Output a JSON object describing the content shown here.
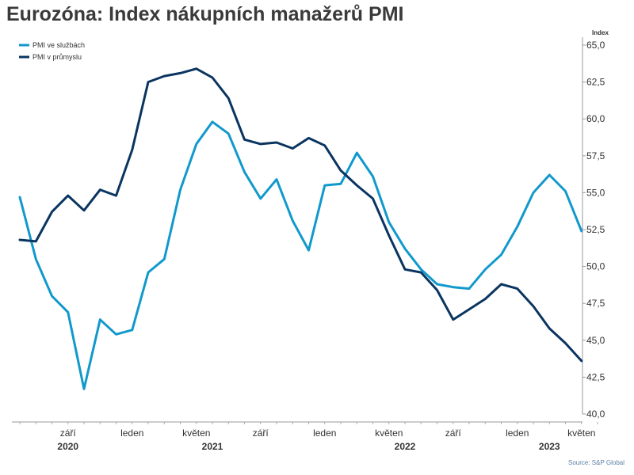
{
  "title": "Eurozóna: Index nákupních manažerů PMI",
  "source": "Source: S&P Global",
  "chart_data": {
    "type": "line",
    "title": "Eurozóna: Index nákupních manažerů PMI",
    "ylabel": "Index",
    "ylim": [
      40,
      65
    ],
    "yticks": [
      "65,0",
      "62,5",
      "60,0",
      "57,5",
      "55,0",
      "52,5",
      "50,0",
      "47,5",
      "45,0",
      "42,5",
      "40,0"
    ],
    "ytick_values": [
      65,
      62.5,
      60,
      57.5,
      55,
      52.5,
      50,
      47.5,
      45,
      42.5,
      40
    ],
    "x": [
      "2020-06",
      "2020-07",
      "2020-08",
      "2020-09",
      "2020-10",
      "2020-11",
      "2020-12",
      "2021-01",
      "2021-02",
      "2021-03",
      "2021-04",
      "2021-05",
      "2021-06",
      "2021-07",
      "2021-08",
      "2021-09",
      "2021-10",
      "2021-11",
      "2021-12",
      "2022-01",
      "2022-02",
      "2022-03",
      "2022-04",
      "2022-05",
      "2022-06",
      "2022-07",
      "2022-08",
      "2022-09",
      "2022-10",
      "2022-11",
      "2022-12",
      "2023-01",
      "2023-02",
      "2023-03",
      "2023-04",
      "2023-05",
      "2023-06"
    ],
    "x_tick_labels": [
      {
        "month": "2020-09",
        "label": "září"
      },
      {
        "month": "2021-01",
        "label": "leden"
      },
      {
        "month": "2021-05",
        "label": "květen"
      },
      {
        "month": "2021-09",
        "label": "září"
      },
      {
        "month": "2022-01",
        "label": "leden"
      },
      {
        "month": "2022-05",
        "label": "květen"
      },
      {
        "month": "2022-09",
        "label": "září"
      },
      {
        "month": "2023-01",
        "label": "leden"
      },
      {
        "month": "2023-05",
        "label": "květen"
      }
    ],
    "year_labels": [
      {
        "month": "2020-09",
        "label": "2020"
      },
      {
        "month": "2021-06",
        "label": "2021"
      },
      {
        "month": "2022-06",
        "label": "2022"
      },
      {
        "month": "2023-03",
        "label": "2023"
      }
    ],
    "series": [
      {
        "name": "PMI ve službách",
        "color": "#1199cc",
        "values": [
          54.7,
          50.5,
          48.0,
          46.9,
          41.7,
          46.4,
          45.4,
          45.7,
          49.6,
          50.5,
          55.2,
          58.3,
          59.8,
          59.0,
          56.4,
          54.6,
          55.9,
          53.1,
          51.1,
          55.5,
          55.6,
          57.7,
          56.1,
          53.0,
          51.2,
          49.8,
          48.8,
          48.6,
          48.5,
          49.8,
          50.8,
          52.7,
          55.0,
          56.2,
          55.1,
          52.4,
          null
        ]
      },
      {
        "name": "PMI v průmyslu",
        "color": "#0a3560",
        "values": [
          51.8,
          51.7,
          53.7,
          54.8,
          53.8,
          55.2,
          54.8,
          57.9,
          62.5,
          62.9,
          63.1,
          63.4,
          62.8,
          61.4,
          58.6,
          58.3,
          58.4,
          58.0,
          58.7,
          58.2,
          56.5,
          55.5,
          54.6,
          52.1,
          49.8,
          49.6,
          48.4,
          46.4,
          47.1,
          47.8,
          48.8,
          48.5,
          47.3,
          45.8,
          44.8,
          43.6,
          null
        ]
      }
    ],
    "legend": {
      "position": "top-left",
      "entries": [
        "PMI ve službách",
        "PMI v průmyslu"
      ]
    },
    "grid": false
  }
}
